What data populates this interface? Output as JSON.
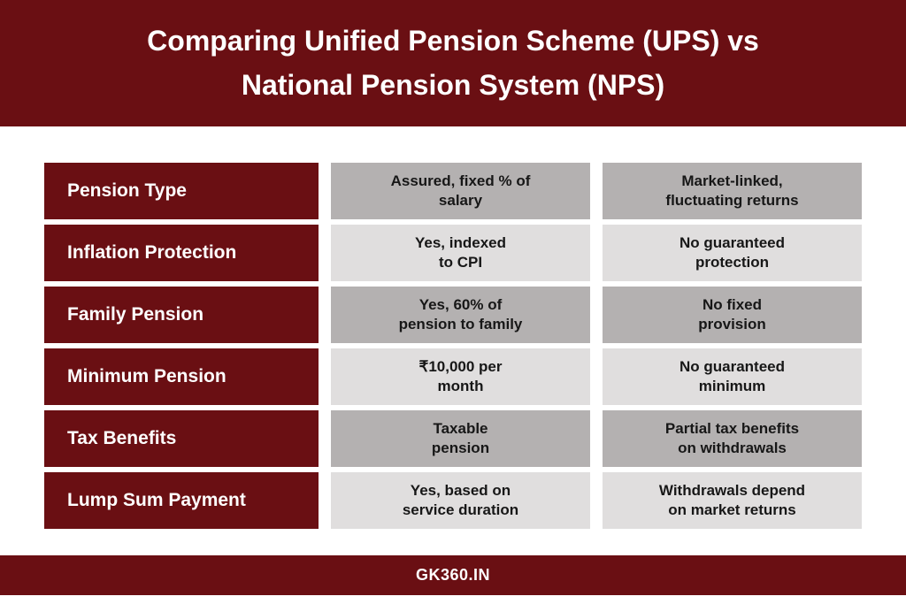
{
  "header": {
    "title_line1": "Comparing Unified Pension Scheme (UPS) vs",
    "title_line2": "National Pension System (NPS)",
    "bg_color": "#6a0f13",
    "text_color": "#ffffff",
    "font_size_pt": 32
  },
  "table": {
    "label_bg_color": "#6a0f13",
    "label_text_color": "#ffffff",
    "shade_dark": "#b4b1b1",
    "shade_light": "#e0dede",
    "label_font_size_pt": 21,
    "value_font_size_pt": 17,
    "rows": [
      {
        "label": "Pension Type",
        "col1_line1": "Assured, fixed % of",
        "col1_line2": "salary",
        "col2_line1": "Market-linked,",
        "col2_line2": "fluctuating returns",
        "shade": "dark"
      },
      {
        "label": "Inflation Protection",
        "col1_line1": "Yes, indexed",
        "col1_line2": "to CPI",
        "col2_line1": "No guaranteed",
        "col2_line2": "protection",
        "shade": "light"
      },
      {
        "label": "Family Pension",
        "col1_line1": "Yes, 60% of",
        "col1_line2": "pension to family",
        "col2_line1": "No fixed",
        "col2_line2": "provision",
        "shade": "dark"
      },
      {
        "label": "Minimum Pension",
        "col1_line1": "₹10,000 per",
        "col1_line2": "month",
        "col2_line1": "No guaranteed",
        "col2_line2": "minimum",
        "shade": "light"
      },
      {
        "label": "Tax Benefits",
        "col1_line1": "Taxable",
        "col1_line2": "pension",
        "col2_line1": "Partial tax benefits",
        "col2_line2": "on withdrawals",
        "shade": "dark"
      },
      {
        "label": "Lump Sum Payment",
        "col1_line1": "Yes, based on",
        "col1_line2": "service duration",
        "col2_line1": "Withdrawals depend",
        "col2_line2": "on market returns",
        "shade": "light"
      }
    ]
  },
  "footer": {
    "text": "GK360.IN",
    "bg_color": "#6a0f13",
    "text_color": "#ffffff",
    "font_size_pt": 18
  }
}
